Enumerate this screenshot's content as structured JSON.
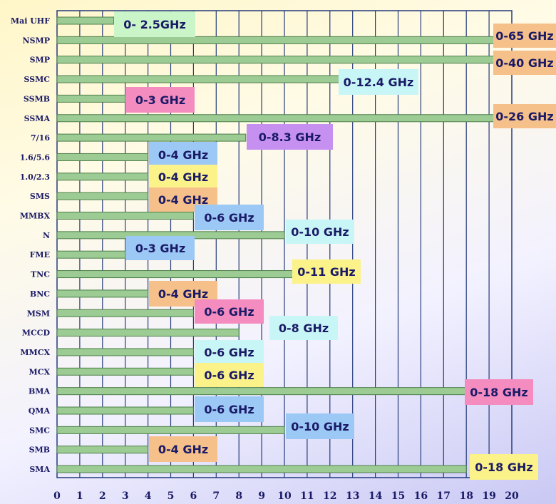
{
  "chart_data": {
    "type": "bar",
    "orientation": "horizontal",
    "title": "",
    "xlabel": "",
    "ylabel": "",
    "xlim": [
      0,
      20
    ],
    "grid": true,
    "x_ticks": [
      "0",
      "1",
      "2",
      "3",
      "4",
      "5",
      "6",
      "7",
      "8",
      "9",
      "10",
      "11",
      "12",
      "13",
      "14",
      "15",
      "16",
      "17",
      "18",
      "19",
      "20"
    ],
    "bars": [
      {
        "category": "Mai UHF",
        "value": 2.5,
        "label": "0- 2.5GHz",
        "color": "#c9f5c9"
      },
      {
        "category": "NSMP",
        "value": 20,
        "label": "0-65 GHz",
        "color": "#f6c08a"
      },
      {
        "category": "SMP",
        "value": 20,
        "label": "0-40 GHz",
        "color": "#f6c08a"
      },
      {
        "category": "SSMC",
        "value": 12.4,
        "label": "0-12.4 GHz",
        "color": "#c8f6f6"
      },
      {
        "category": "SSMB",
        "value": 3,
        "label": "0-3 GHz",
        "color": "#f48cc0"
      },
      {
        "category": "SSMA",
        "value": 20,
        "label": "0-26 GHz",
        "color": "#f6c08a"
      },
      {
        "category": "7/16",
        "value": 8.3,
        "label": "0-8.3 GHz",
        "color": "#c690f0"
      },
      {
        "category": "1.6/5.6",
        "value": 4,
        "label": "0-4 GHz",
        "color": "#9cc8f6"
      },
      {
        "category": "1.0/2.3",
        "value": 4,
        "label": "0-4 GHz",
        "color": "#fbf28a"
      },
      {
        "category": "SMS",
        "value": 4,
        "label": "0-4 GHz",
        "color": "#f6c08a"
      },
      {
        "category": "MMBX",
        "value": 6,
        "label": "0-6 GHz",
        "color": "#9cc8f6"
      },
      {
        "category": "N",
        "value": 10,
        "label": "0-10 GHz",
        "color": "#c8f6f6"
      },
      {
        "category": "FME",
        "value": 3,
        "label": "0-3 GHz",
        "color": "#9cc8f6"
      },
      {
        "category": "TNC",
        "value": 11,
        "label": "0-11 GHz",
        "color": "#fbf28a"
      },
      {
        "category": "BNC",
        "value": 4,
        "label": "0-4 GHz",
        "color": "#f6c08a"
      },
      {
        "category": "MSM",
        "value": 6,
        "label": "0-6 GHz",
        "color": "#f48cc0"
      },
      {
        "category": "MCCD",
        "value": 8,
        "label": "0-8 GHz",
        "color": "#c8f6f6"
      },
      {
        "category": "MMCX",
        "value": 6,
        "label": "0-6 GHz",
        "color": "#c8f6f6"
      },
      {
        "category": "MCX",
        "value": 6,
        "label": "0-6 GHz",
        "color": "#fbf28a"
      },
      {
        "category": "BMA",
        "value": 18,
        "label": "0-18 GHz",
        "color": "#f48cc0"
      },
      {
        "category": "QMA",
        "value": 6,
        "label": "0-6 GHz",
        "color": "#9cc8f6"
      },
      {
        "category": "SMC",
        "value": 10,
        "label": "0-10 GHz",
        "color": "#9cc8f6"
      },
      {
        "category": "SMB",
        "value": 4,
        "label": "0-4 GHz",
        "color": "#f6c08a"
      },
      {
        "category": "SMA",
        "value": 18,
        "label": "0-18 GHz",
        "color": "#fbf28a"
      }
    ],
    "colors": {
      "bar_fill": "#9ccc94",
      "bar_stroke": "#4e7e4a",
      "grid": "#243a7a",
      "text": "#1a1a66"
    }
  }
}
